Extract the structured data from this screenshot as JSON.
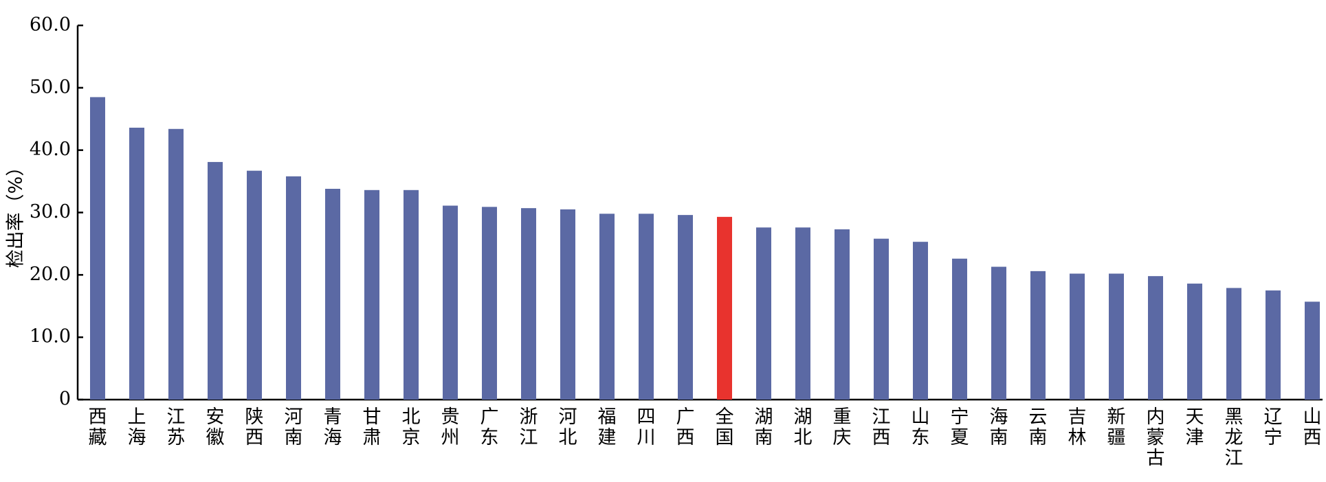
{
  "chart_data": {
    "type": "bar",
    "y_label": "检出率（%）",
    "categories": [
      "西藏",
      "上海",
      "江苏",
      "安徽",
      "陕西",
      "河南",
      "青海",
      "甘肃",
      "北京",
      "贵州",
      "广东",
      "浙江",
      "河北",
      "福建",
      "四川",
      "广西",
      "全国",
      "湖南",
      "湖北",
      "重庆",
      "江西",
      "山东",
      "宁夏",
      "海南",
      "云南",
      "吉林",
      "新疆",
      "内蒙古",
      "天津",
      "黑龙江",
      "辽宁",
      "山西"
    ],
    "values": [
      48.5,
      43.6,
      43.4,
      38.1,
      36.7,
      35.8,
      33.8,
      33.6,
      33.6,
      31.1,
      30.9,
      30.7,
      30.5,
      29.8,
      29.8,
      29.6,
      29.3,
      27.6,
      27.6,
      27.3,
      25.8,
      25.3,
      22.6,
      21.3,
      20.6,
      20.2,
      20.2,
      19.8,
      18.6,
      17.9,
      17.5,
      15.7
    ],
    "colors": [
      "#5b69a4",
      "#5b69a4",
      "#5b69a4",
      "#5b69a4",
      "#5b69a4",
      "#5b69a4",
      "#5b69a4",
      "#5b69a4",
      "#5b69a4",
      "#5b69a4",
      "#5b69a4",
      "#5b69a4",
      "#5b69a4",
      "#5b69a4",
      "#5b69a4",
      "#5b69a4",
      "#e8332e",
      "#5b69a4",
      "#5b69a4",
      "#5b69a4",
      "#5b69a4",
      "#5b69a4",
      "#5b69a4",
      "#5b69a4",
      "#5b69a4",
      "#5b69a4",
      "#5b69a4",
      "#5b69a4",
      "#5b69a4",
      "#5b69a4",
      "#5b69a4",
      "#5b69a4"
    ],
    "ylim": [
      0,
      60
    ],
    "yticks": [
      0,
      {
        "value": 10,
        "label": "10.0"
      },
      {
        "value": 20,
        "label": "20.0"
      },
      {
        "value": 30,
        "label": "30.0"
      },
      {
        "value": 40,
        "label": "40.0"
      },
      {
        "value": 50,
        "label": "50.0"
      },
      {
        "value": 60,
        "label": "60.0"
      }
    ]
  }
}
